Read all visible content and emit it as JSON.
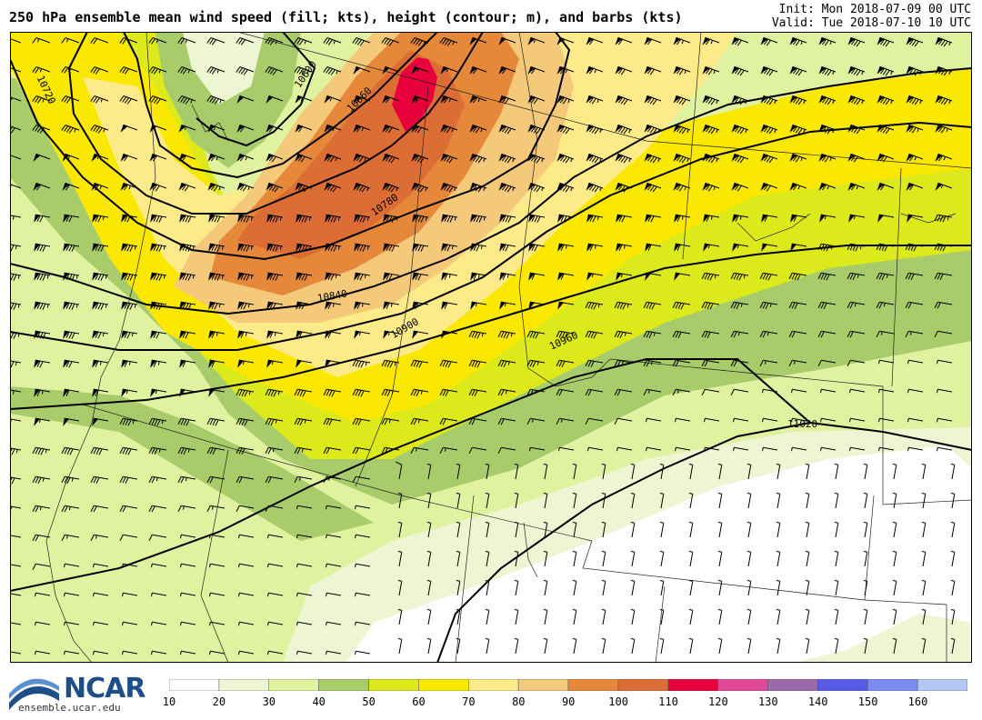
{
  "header": {
    "title": "250 hPa ensemble mean wind speed (fill; kts), height (contour; m), and barbs (kts)",
    "init": "Init: Mon 2018-07-09 00 UTC",
    "valid": "Valid: Tue 2018-07-10 10 UTC"
  },
  "branding": {
    "logo_text": "NCAR",
    "url": "ensemble.ucar.edu"
  },
  "contours": [
    {
      "label": "10600"
    },
    {
      "label": "10660"
    },
    {
      "label": "10720"
    },
    {
      "label": "10780"
    },
    {
      "label": "10840"
    },
    {
      "label": "10900"
    },
    {
      "label": "10960"
    },
    {
      "label": "11020"
    }
  ],
  "colorbar": {
    "ticks": [
      "10",
      "20",
      "30",
      "40",
      "50",
      "60",
      "70",
      "80",
      "90",
      "100",
      "110",
      "120",
      "130",
      "140",
      "150",
      "160"
    ],
    "colors": [
      "#ffffff",
      "#eef5d2",
      "#e0f2a0",
      "#a8cc6a",
      "#dcea1c",
      "#fbe800",
      "#fdeb8a",
      "#f5c97a",
      "#e5883a",
      "#dc6e35",
      "#e8003c",
      "#e04898",
      "#9c6aa8",
      "#5a5ae8",
      "#7c8cf0",
      "#b4c8f4"
    ]
  }
}
